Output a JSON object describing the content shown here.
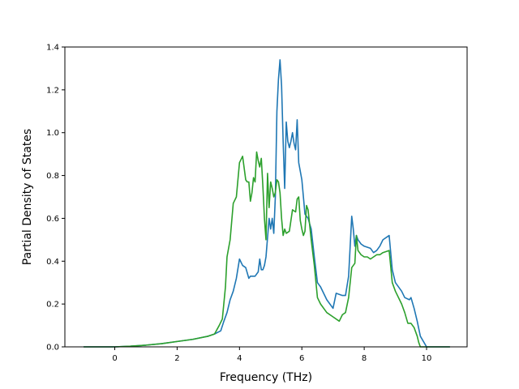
{
  "chart_data": {
    "type": "line",
    "title": "",
    "xlabel": "Frequency (THz)",
    "ylabel": "Partial Density of States",
    "xlim": [
      -1.6,
      11.3
    ],
    "ylim": [
      0.0,
      1.4
    ],
    "xticks": [
      0,
      2,
      4,
      6,
      8,
      10
    ],
    "xtick_labels": [
      "0",
      "2",
      "4",
      "6",
      "8",
      "10"
    ],
    "yticks": [
      0.0,
      0.2,
      0.4,
      0.6,
      0.8,
      1.0,
      1.2,
      1.4
    ],
    "ytick_labels": [
      "0.0",
      "0.2",
      "0.4",
      "0.6",
      "0.8",
      "1.0",
      "1.2",
      "1.4"
    ],
    "grid": false,
    "legend": "none",
    "series": [
      {
        "color": "#1f77b4",
        "x": [
          -1.0,
          0.0,
          0.5,
          1.0,
          1.5,
          2.0,
          2.5,
          3.0,
          3.2,
          3.4,
          3.5,
          3.6,
          3.7,
          3.8,
          3.9,
          4.0,
          4.1,
          4.2,
          4.3,
          4.35,
          4.4,
          4.5,
          4.6,
          4.65,
          4.7,
          4.75,
          4.8,
          4.85,
          4.9,
          4.95,
          5.0,
          5.05,
          5.1,
          5.15,
          5.2,
          5.25,
          5.3,
          5.35,
          5.4,
          5.45,
          5.5,
          5.55,
          5.6,
          5.65,
          5.7,
          5.75,
          5.8,
          5.85,
          5.9,
          5.95,
          6.0,
          6.1,
          6.2,
          6.3,
          6.4,
          6.5,
          6.6,
          6.8,
          7.0,
          7.1,
          7.3,
          7.4,
          7.5,
          7.6,
          7.65,
          7.7,
          7.75,
          7.8,
          7.9,
          8.0,
          8.2,
          8.3,
          8.4,
          8.5,
          8.6,
          8.8,
          8.9,
          9.0,
          9.2,
          9.3,
          9.45,
          9.5,
          9.6,
          9.7,
          9.8,
          10.0,
          10.5,
          10.75
        ],
        "y": [
          0.0,
          0.0,
          0.003,
          0.008,
          0.015,
          0.025,
          0.035,
          0.05,
          0.06,
          0.075,
          0.12,
          0.16,
          0.22,
          0.26,
          0.32,
          0.41,
          0.38,
          0.37,
          0.32,
          0.33,
          0.33,
          0.33,
          0.35,
          0.41,
          0.36,
          0.36,
          0.38,
          0.42,
          0.51,
          0.6,
          0.55,
          0.6,
          0.53,
          0.7,
          1.1,
          1.25,
          1.34,
          1.22,
          0.96,
          0.74,
          1.05,
          0.96,
          0.93,
          0.96,
          1.0,
          0.95,
          0.92,
          1.06,
          0.86,
          0.82,
          0.78,
          0.62,
          0.6,
          0.55,
          0.42,
          0.3,
          0.28,
          0.22,
          0.18,
          0.25,
          0.24,
          0.24,
          0.33,
          0.61,
          0.55,
          0.47,
          0.52,
          0.5,
          0.48,
          0.47,
          0.46,
          0.44,
          0.45,
          0.47,
          0.5,
          0.52,
          0.36,
          0.3,
          0.26,
          0.23,
          0.22,
          0.23,
          0.18,
          0.12,
          0.05,
          0.0,
          0.0,
          0.0
        ]
      },
      {
        "color": "#2ca02c",
        "x": [
          -1.0,
          0.0,
          0.5,
          1.0,
          1.5,
          2.0,
          2.5,
          3.0,
          3.2,
          3.35,
          3.45,
          3.55,
          3.6,
          3.7,
          3.8,
          3.9,
          4.0,
          4.1,
          4.2,
          4.25,
          4.3,
          4.35,
          4.4,
          4.45,
          4.5,
          4.55,
          4.6,
          4.65,
          4.7,
          4.75,
          4.8,
          4.85,
          4.9,
          4.95,
          5.0,
          5.05,
          5.1,
          5.15,
          5.2,
          5.25,
          5.3,
          5.35,
          5.4,
          5.45,
          5.5,
          5.6,
          5.7,
          5.8,
          5.85,
          5.9,
          5.95,
          6.0,
          6.05,
          6.1,
          6.15,
          6.2,
          6.3,
          6.4,
          6.5,
          6.6,
          6.8,
          7.0,
          7.2,
          7.3,
          7.4,
          7.5,
          7.6,
          7.7,
          7.75,
          7.8,
          7.9,
          8.0,
          8.1,
          8.2,
          8.3,
          8.4,
          8.5,
          8.6,
          8.8,
          8.9,
          9.0,
          9.2,
          9.3,
          9.4,
          9.5,
          9.6,
          9.7,
          9.75,
          9.8,
          10.0,
          10.5,
          10.75
        ],
        "y": [
          0.0,
          0.0,
          0.003,
          0.008,
          0.015,
          0.025,
          0.035,
          0.05,
          0.06,
          0.1,
          0.13,
          0.28,
          0.42,
          0.5,
          0.67,
          0.7,
          0.86,
          0.89,
          0.78,
          0.77,
          0.77,
          0.68,
          0.72,
          0.79,
          0.77,
          0.91,
          0.87,
          0.84,
          0.88,
          0.75,
          0.6,
          0.5,
          0.81,
          0.65,
          0.77,
          0.74,
          0.7,
          0.72,
          0.78,
          0.77,
          0.72,
          0.6,
          0.52,
          0.55,
          0.53,
          0.54,
          0.64,
          0.63,
          0.69,
          0.7,
          0.59,
          0.55,
          0.52,
          0.54,
          0.66,
          0.64,
          0.5,
          0.38,
          0.23,
          0.2,
          0.16,
          0.14,
          0.12,
          0.15,
          0.16,
          0.23,
          0.37,
          0.39,
          0.52,
          0.45,
          0.43,
          0.42,
          0.42,
          0.41,
          0.42,
          0.43,
          0.43,
          0.44,
          0.45,
          0.3,
          0.26,
          0.2,
          0.16,
          0.11,
          0.11,
          0.09,
          0.05,
          0.02,
          0.0,
          0.0,
          0.0,
          0.0
        ]
      }
    ]
  }
}
